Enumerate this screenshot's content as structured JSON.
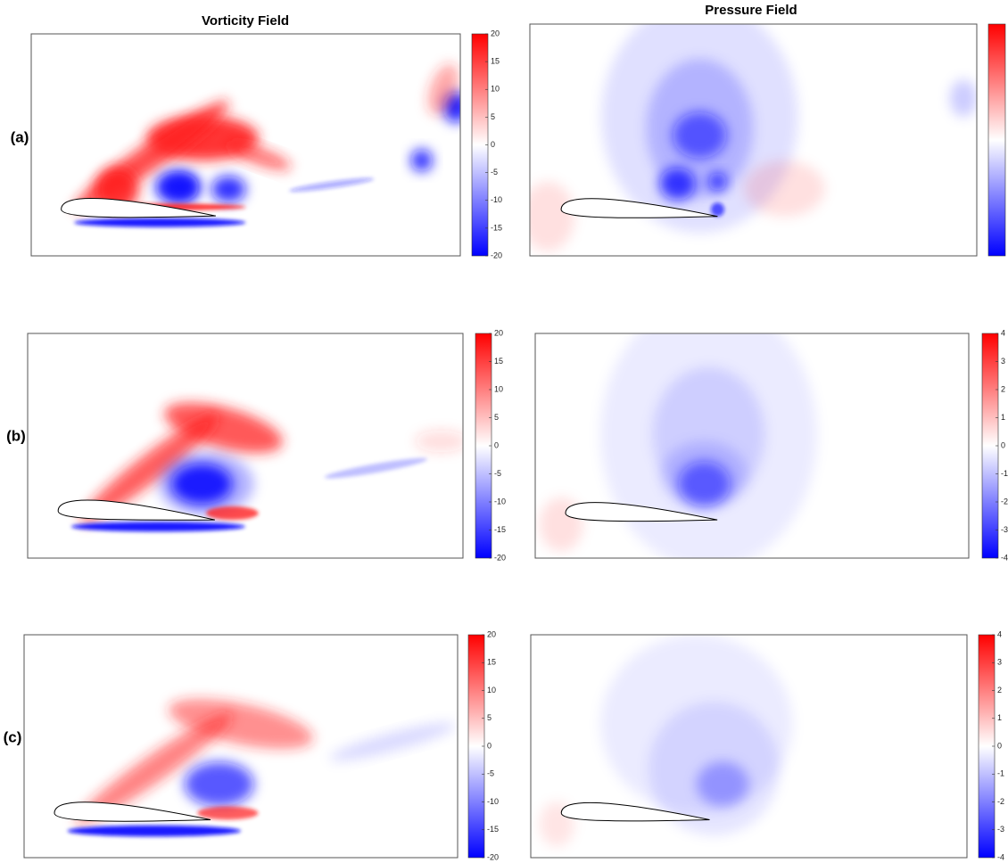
{
  "column_titles": [
    "Vorticity Field",
    "Pressure Field"
  ],
  "rows": [
    {
      "label": "(a)",
      "vorticity": {
        "range": [
          -20,
          20
        ],
        "ticks": [
          20,
          15,
          10,
          5,
          0,
          -5,
          -10,
          -15,
          -20
        ]
      },
      "pressure": {}
    },
    {
      "label": "(b)",
      "vorticity": {
        "range": [
          -20,
          20
        ],
        "ticks": [
          20,
          15,
          10,
          5,
          0,
          -5,
          -10,
          -15,
          -20
        ]
      },
      "pressure": {
        "range": [
          -4,
          4
        ],
        "ticks": [
          4,
          3,
          2,
          1,
          0,
          -1,
          -2,
          -3,
          -4
        ]
      }
    },
    {
      "label": "(c)",
      "vorticity": {
        "range": [
          -20,
          20
        ],
        "ticks": [
          20,
          15,
          10,
          5,
          0,
          -5,
          -10,
          -15,
          -20
        ]
      },
      "pressure": {
        "range": [
          -4,
          4
        ],
        "ticks": [
          4,
          3,
          2,
          1,
          0,
          -1,
          -2,
          -3,
          -4
        ]
      }
    }
  ]
}
